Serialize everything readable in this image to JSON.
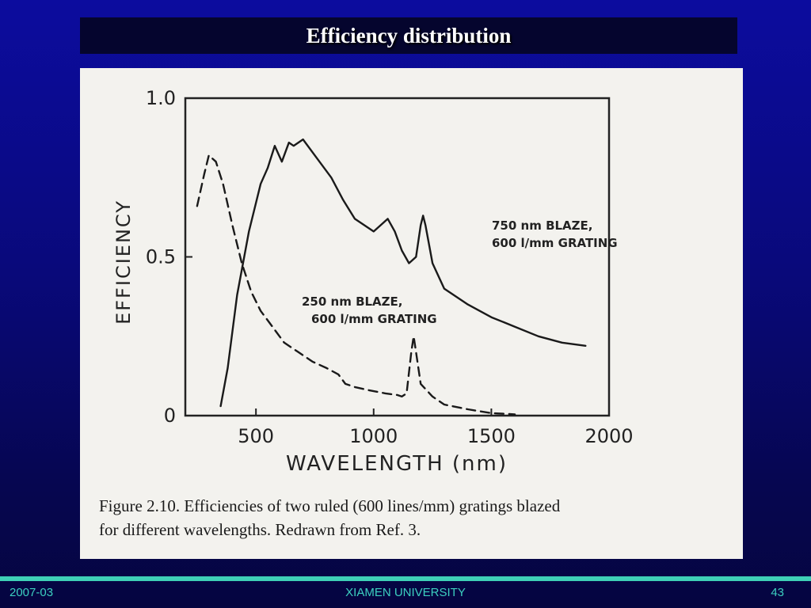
{
  "slide": {
    "title": "Efficiency distribution",
    "footer_left": "2007-03",
    "footer_center": "XIAMEN UNIVERSITY",
    "footer_right": "43"
  },
  "figure": {
    "caption_line1": "Figure 2.10.   Efficiencies of two ruled (600 lines/mm) gratings blazed",
    "caption_line2": "for different wavelengths. Redrawn from Ref. 3."
  },
  "chart_data": {
    "type": "line",
    "xlabel": "WAVELENGTH (nm)",
    "ylabel": "EFFICIENCY",
    "xlim": [
      200,
      2000
    ],
    "ylim": [
      0,
      1.0
    ],
    "x_ticks": [
      500,
      1000,
      1500,
      2000
    ],
    "x_tick_labels": [
      "500",
      "1000",
      "1500",
      "2000"
    ],
    "y_ticks": [
      0,
      0.5,
      1.0
    ],
    "y_tick_labels": [
      "0",
      "0.5",
      "1.0"
    ],
    "grid": false,
    "series": [
      {
        "name": "750 nm BLAZE, 600 l/mm GRATING",
        "label_lines": [
          "750 nm BLAZE,",
          "600 l/mm GRATING"
        ],
        "style": "solid",
        "points": [
          [
            350,
            0.03
          ],
          [
            380,
            0.15
          ],
          [
            420,
            0.38
          ],
          [
            470,
            0.58
          ],
          [
            520,
            0.73
          ],
          [
            550,
            0.78
          ],
          [
            580,
            0.85
          ],
          [
            610,
            0.8
          ],
          [
            640,
            0.86
          ],
          [
            660,
            0.85
          ],
          [
            700,
            0.87
          ],
          [
            760,
            0.81
          ],
          [
            820,
            0.75
          ],
          [
            870,
            0.68
          ],
          [
            920,
            0.62
          ],
          [
            960,
            0.6
          ],
          [
            1000,
            0.58
          ],
          [
            1030,
            0.6
          ],
          [
            1060,
            0.62
          ],
          [
            1090,
            0.58
          ],
          [
            1120,
            0.52
          ],
          [
            1150,
            0.48
          ],
          [
            1180,
            0.5
          ],
          [
            1200,
            0.6
          ],
          [
            1210,
            0.63
          ],
          [
            1220,
            0.6
          ],
          [
            1250,
            0.48
          ],
          [
            1300,
            0.4
          ],
          [
            1400,
            0.35
          ],
          [
            1500,
            0.31
          ],
          [
            1600,
            0.28
          ],
          [
            1700,
            0.25
          ],
          [
            1800,
            0.23
          ],
          [
            1900,
            0.22
          ]
        ]
      },
      {
        "name": "250 nm BLAZE, 600 l/mm GRATING",
        "label_lines": [
          "250 nm BLAZE,",
          "600 l/mm GRATING"
        ],
        "style": "dashed",
        "points": [
          [
            250,
            0.66
          ],
          [
            280,
            0.76
          ],
          [
            300,
            0.82
          ],
          [
            330,
            0.8
          ],
          [
            360,
            0.73
          ],
          [
            400,
            0.6
          ],
          [
            440,
            0.48
          ],
          [
            480,
            0.39
          ],
          [
            520,
            0.33
          ],
          [
            570,
            0.28
          ],
          [
            620,
            0.23
          ],
          [
            680,
            0.2
          ],
          [
            740,
            0.17
          ],
          [
            800,
            0.15
          ],
          [
            850,
            0.13
          ],
          [
            880,
            0.1
          ],
          [
            920,
            0.09
          ],
          [
            980,
            0.08
          ],
          [
            1050,
            0.07
          ],
          [
            1100,
            0.065
          ],
          [
            1120,
            0.06
          ],
          [
            1140,
            0.07
          ],
          [
            1160,
            0.2
          ],
          [
            1170,
            0.25
          ],
          [
            1180,
            0.2
          ],
          [
            1200,
            0.1
          ],
          [
            1250,
            0.06
          ],
          [
            1300,
            0.035
          ],
          [
            1400,
            0.02
          ],
          [
            1500,
            0.008
          ],
          [
            1600,
            0.004
          ]
        ]
      }
    ]
  }
}
